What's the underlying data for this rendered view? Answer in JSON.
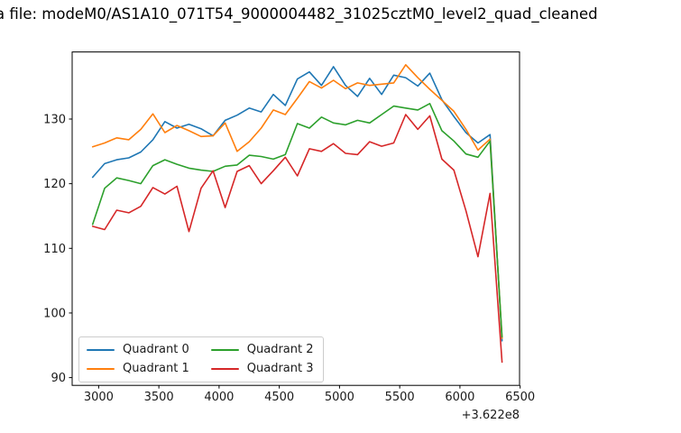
{
  "title": "a file: modeM0/AS1A10_071T54_9000004482_31025cztM0_level2_quad_cleaned",
  "chart_data": {
    "type": "line",
    "title": "a file: modeM0/AS1A10_071T54_9000004482_31025cztM0_level2_quad_cleaned",
    "xlabel": "",
    "ylabel": "",
    "x_axis_offset_label": "+3.622e8",
    "xlim": [
      2780,
      6495
    ],
    "ylim": [
      88.8,
      140.38
    ],
    "xticks": [
      "3000",
      "3500",
      "4000",
      "4500",
      "5000",
      "5500",
      "6000",
      "6500"
    ],
    "xtick_values": [
      3000,
      3500,
      4000,
      4500,
      5000,
      5500,
      6000,
      6500
    ],
    "yticks": [
      "90",
      "100",
      "110",
      "120",
      "130"
    ],
    "ytick_values": [
      90,
      100,
      110,
      120,
      130
    ],
    "grid": false,
    "legend_position": "lower left",
    "legend_columns": 2,
    "x": [
      2950,
      3050,
      3150,
      3250,
      3350,
      3450,
      3550,
      3650,
      3750,
      3850,
      3950,
      4050,
      4150,
      4250,
      4350,
      4450,
      4550,
      4650,
      4750,
      4850,
      4950,
      5050,
      5150,
      5250,
      5350,
      5450,
      5550,
      5650,
      5750,
      5850,
      5950,
      6050,
      6150,
      6250,
      6350
    ],
    "series": [
      {
        "name": "Quadrant 0",
        "color": "#1f77b4",
        "values": [
          121.0,
          123.1,
          123.7,
          124.0,
          124.9,
          126.8,
          129.6,
          128.6,
          129.2,
          128.5,
          127.4,
          129.8,
          130.6,
          131.7,
          131.1,
          133.8,
          132.1,
          136.2,
          137.3,
          135.2,
          138.1,
          135.2,
          133.5,
          136.3,
          133.8,
          136.8,
          136.4,
          135.1,
          137.1,
          133.0,
          130.4,
          127.9,
          126.3,
          127.6,
          95.7
        ]
      },
      {
        "name": "Quadrant 1",
        "color": "#ff7f0e",
        "values": [
          125.7,
          126.3,
          127.1,
          126.8,
          128.4,
          130.8,
          127.9,
          129.0,
          128.2,
          127.3,
          127.4,
          129.4,
          125.0,
          126.5,
          128.6,
          131.4,
          130.7,
          133.2,
          135.8,
          134.8,
          136.0,
          134.7,
          135.6,
          135.2,
          135.4,
          135.6,
          138.4,
          136.4,
          134.6,
          132.9,
          131.2,
          128.4,
          125.2,
          126.9,
          96.1
        ]
      },
      {
        "name": "Quadrant 2",
        "color": "#2ca02c",
        "values": [
          113.7,
          119.3,
          120.9,
          120.5,
          120.0,
          122.8,
          123.7,
          123.0,
          122.4,
          122.1,
          121.9,
          122.7,
          122.9,
          124.4,
          124.2,
          123.8,
          124.5,
          129.3,
          128.6,
          130.3,
          129.4,
          129.1,
          129.8,
          129.4,
          130.7,
          132.0,
          131.7,
          131.4,
          132.4,
          128.2,
          126.6,
          124.6,
          124.1,
          126.6,
          96.3
        ]
      },
      {
        "name": "Quadrant 3",
        "color": "#d62728",
        "values": [
          113.4,
          112.9,
          115.9,
          115.5,
          116.5,
          119.4,
          118.4,
          119.6,
          112.6,
          119.3,
          122.0,
          116.3,
          121.9,
          122.8,
          120.0,
          122.0,
          124.1,
          121.2,
          125.4,
          125.0,
          126.2,
          124.7,
          124.5,
          126.5,
          125.8,
          126.3,
          130.7,
          128.4,
          130.5,
          123.8,
          122.1,
          115.8,
          108.7,
          118.5,
          92.4
        ]
      }
    ]
  }
}
